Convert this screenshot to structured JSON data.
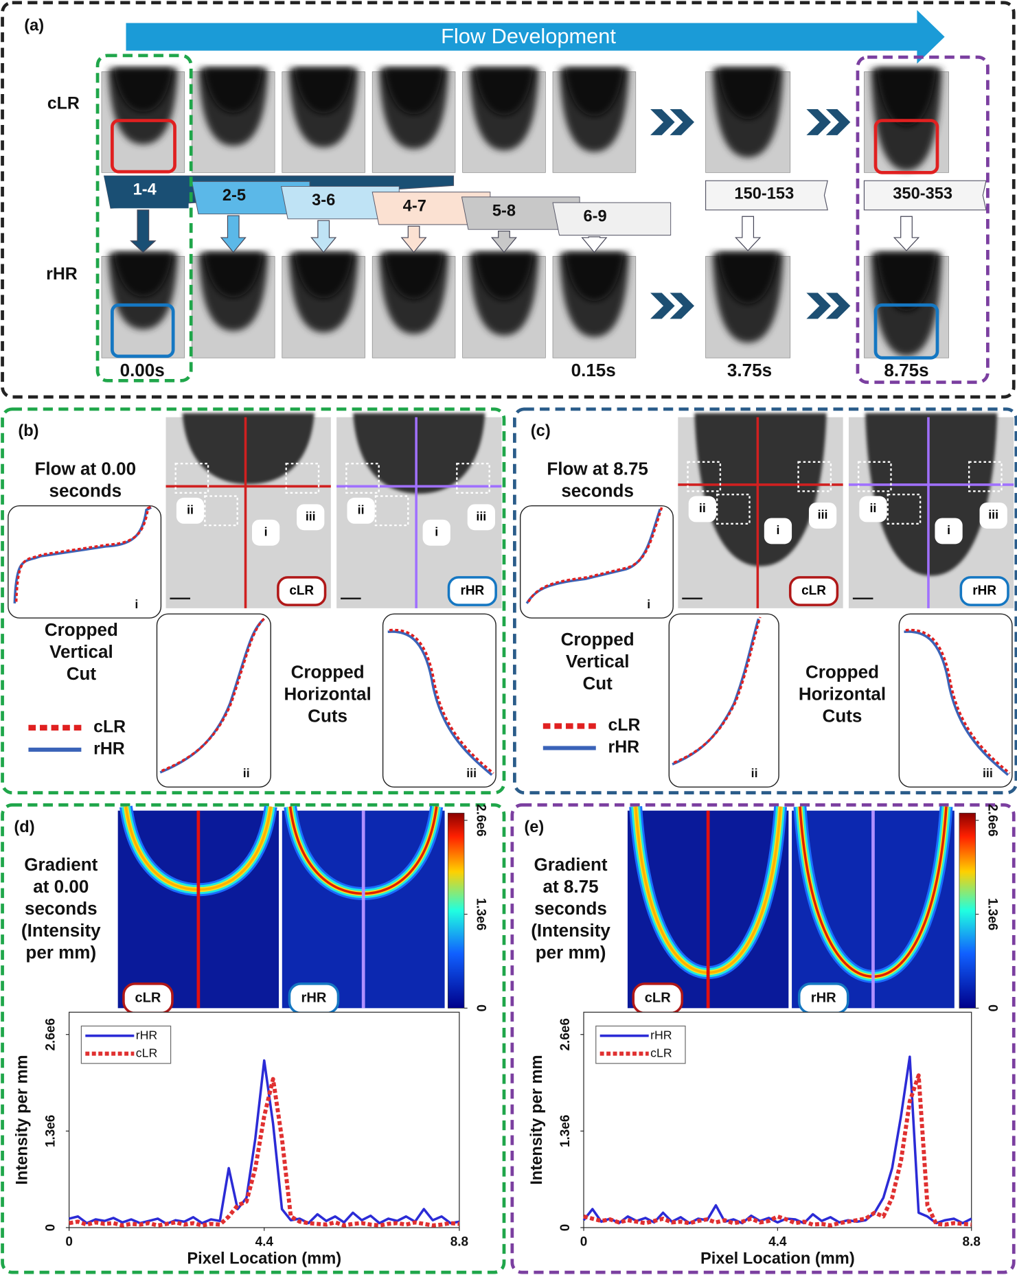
{
  "panels": {
    "a": {
      "label": "(a)",
      "arrow": "Flow Development",
      "rows": [
        "cLR",
        "rHR"
      ],
      "windows": [
        "1-4",
        "2-5",
        "3-6",
        "4-7",
        "5-8",
        "6-9",
        "150-153",
        "350-353"
      ],
      "times": [
        "0.00s",
        "0.15s",
        "3.75s",
        "8.75s"
      ]
    },
    "b": {
      "label": "(b)",
      "title": [
        "Flow at 0.00",
        "seconds"
      ],
      "vertical": [
        "Cropped",
        "Vertical",
        "Cut"
      ],
      "horizontal": [
        "Cropped",
        "Horizontal",
        "Cuts"
      ],
      "legend": [
        "cLR",
        "rHR"
      ],
      "markers": [
        "i",
        "ii",
        "iii"
      ],
      "badges": [
        "cLR",
        "rHR"
      ]
    },
    "c": {
      "label": "(c)",
      "title": [
        "Flow at 8.75",
        "seconds"
      ],
      "vertical": [
        "Cropped",
        "Vertical",
        "Cut"
      ],
      "horizontal": [
        "Cropped",
        "Horizontal",
        "Cuts"
      ],
      "legend": [
        "cLR",
        "rHR"
      ],
      "markers": [
        "i",
        "ii",
        "iii"
      ],
      "badges": [
        "cLR",
        "rHR"
      ]
    },
    "d": {
      "label": "(d)",
      "title": [
        "Gradient",
        "at 0.00",
        "seconds",
        "(Intensity",
        "per mm)"
      ],
      "badges": [
        "cLR",
        "rHR"
      ],
      "colorbar_ticks": [
        {
          "value": 2600000,
          "label": "2.6e6"
        },
        {
          "value": 1300000,
          "label": "1.3e6"
        },
        0
      ],
      "colorbar_lim": [
        0,
        2700000
      ]
    },
    "e": {
      "label": "(e)",
      "title": [
        "Gradient",
        "at 8.75",
        "seconds",
        "(Intensity",
        "per mm)"
      ],
      "badges": [
        "cLR",
        "rHR"
      ],
      "colorbar_ticks": [
        {
          "value": 2600000,
          "label": "2.6e6"
        },
        {
          "value": 1300000,
          "label": "1.3e6"
        },
        0
      ],
      "colorbar_lim": [
        0,
        2700000
      ]
    }
  },
  "chart_data": [
    {
      "type": "line",
      "xlabel": "Pixel Location (mm)",
      "ylabel": "Intensity per mm",
      "x": [
        0,
        0.2,
        0.4,
        0.6,
        0.8,
        1,
        1.2,
        1.4,
        1.6,
        1.8,
        2,
        2.2,
        2.4,
        2.6,
        2.8,
        3,
        3.2,
        3.4,
        3.6,
        3.8,
        4,
        4.2,
        4.4,
        4.6,
        4.8,
        5,
        5.2,
        5.4,
        5.6,
        5.8,
        6,
        6.2,
        6.4,
        6.6,
        6.8,
        7,
        7.2,
        7.4,
        7.6,
        7.8,
        8,
        8.2,
        8.4,
        8.6,
        8.8
      ],
      "series": [
        {
          "name": "rHR",
          "color": "#2b2bd6",
          "values": [
            120000,
            150000,
            60000,
            110000,
            90000,
            130000,
            70000,
            110000,
            60000,
            90000,
            120000,
            50000,
            100000,
            80000,
            140000,
            60000,
            110000,
            90000,
            800000,
            250000,
            400000,
            1200000,
            2250000,
            1400000,
            250000,
            100000,
            120000,
            60000,
            180000,
            90000,
            150000,
            70000,
            200000,
            100000,
            160000,
            60000,
            120000,
            90000,
            150000,
            80000,
            250000,
            100000,
            150000,
            60000,
            80000
          ]
        },
        {
          "name": "cLR",
          "color": "#e03030",
          "values": [
            60000,
            80000,
            40000,
            70000,
            50000,
            60000,
            30000,
            50000,
            40000,
            60000,
            30000,
            50000,
            70000,
            40000,
            60000,
            30000,
            50000,
            40000,
            150000,
            300000,
            350000,
            800000,
            1500000,
            2000000,
            1200000,
            150000,
            80000,
            60000,
            50000,
            40000,
            70000,
            30000,
            50000,
            60000,
            40000,
            30000,
            50000,
            60000,
            40000,
            70000,
            50000,
            30000,
            40000,
            60000,
            50000
          ]
        }
      ],
      "xlim": [
        0,
        8.8
      ],
      "ylim": [
        0,
        2900000
      ],
      "xticks": [
        0,
        4.4,
        8.8
      ],
      "yticks": [
        0,
        {
          "value": 1300000,
          "label": "1.3e6"
        },
        {
          "value": 2600000,
          "label": "2.6e6"
        }
      ]
    },
    {
      "type": "line",
      "xlabel": "Pixel Location (mm)",
      "ylabel": "Intensity per mm",
      "x": [
        0,
        0.2,
        0.4,
        0.6,
        0.8,
        1,
        1.2,
        1.4,
        1.6,
        1.8,
        2,
        2.2,
        2.4,
        2.6,
        2.8,
        3,
        3.2,
        3.4,
        3.6,
        3.8,
        4,
        4.2,
        4.4,
        4.6,
        4.8,
        5,
        5.2,
        5.4,
        5.6,
        5.8,
        6,
        6.2,
        6.4,
        6.6,
        6.8,
        7,
        7.2,
        7.4,
        7.6,
        7.8,
        8,
        8.2,
        8.4,
        8.6,
        8.8
      ],
      "series": [
        {
          "name": "rHR",
          "color": "#2b2bd6",
          "values": [
            100000,
            250000,
            80000,
            120000,
            60000,
            150000,
            90000,
            130000,
            70000,
            200000,
            80000,
            140000,
            60000,
            120000,
            100000,
            300000,
            80000,
            110000,
            60000,
            160000,
            90000,
            130000,
            70000,
            120000,
            110000,
            60000,
            180000,
            90000,
            140000,
            70000,
            100000,
            80000,
            100000,
            200000,
            400000,
            800000,
            1500000,
            2300000,
            200000,
            150000,
            60000,
            100000,
            120000,
            60000,
            120000
          ]
        },
        {
          "name": "cLR",
          "color": "#e03030",
          "values": [
            150000,
            120000,
            90000,
            110000,
            70000,
            100000,
            80000,
            60000,
            90000,
            120000,
            70000,
            80000,
            60000,
            90000,
            110000,
            70000,
            100000,
            60000,
            80000,
            120000,
            70000,
            90000,
            150000,
            110000,
            60000,
            80000,
            40000,
            50000,
            30000,
            60000,
            80000,
            100000,
            120000,
            200000,
            150000,
            400000,
            900000,
            1700000,
            2050000,
            300000,
            50000,
            40000,
            60000,
            50000,
            40000
          ]
        }
      ],
      "xlim": [
        0,
        8.8
      ],
      "ylim": [
        0,
        2900000
      ],
      "xticks": [
        0,
        4.4,
        8.8
      ],
      "yticks": [
        0,
        {
          "value": 1300000,
          "label": "1.3e6"
        },
        {
          "value": 2600000,
          "label": "2.6e6"
        }
      ]
    }
  ]
}
